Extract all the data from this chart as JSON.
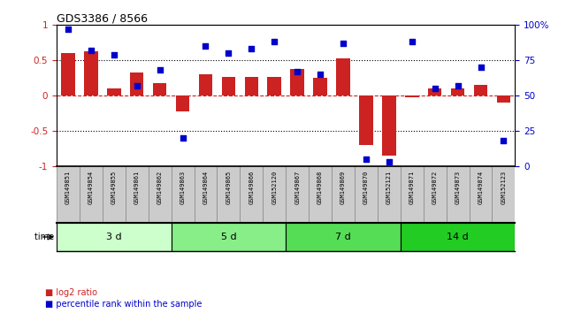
{
  "title": "GDS3386 / 8566",
  "samples": [
    "GSM149851",
    "GSM149854",
    "GSM149855",
    "GSM149861",
    "GSM149862",
    "GSM149863",
    "GSM149864",
    "GSM149865",
    "GSM149866",
    "GSM152120",
    "GSM149867",
    "GSM149868",
    "GSM149869",
    "GSM149870",
    "GSM152121",
    "GSM149871",
    "GSM149872",
    "GSM149873",
    "GSM149874",
    "GSM152123"
  ],
  "log2_ratio": [
    0.6,
    0.63,
    0.1,
    0.33,
    0.18,
    -0.22,
    0.3,
    0.27,
    0.27,
    0.27,
    0.38,
    0.25,
    0.53,
    -0.7,
    -0.85,
    -0.02,
    0.1,
    0.1,
    0.15,
    -0.1
  ],
  "percentile_rank": [
    97,
    82,
    79,
    57,
    68,
    20,
    85,
    80,
    83,
    88,
    67,
    65,
    87,
    5,
    3,
    88,
    55,
    57,
    70,
    18
  ],
  "groups": [
    {
      "label": "3 d",
      "start": 0,
      "end": 5,
      "color": "#ccffcc"
    },
    {
      "label": "5 d",
      "start": 5,
      "end": 10,
      "color": "#88ee88"
    },
    {
      "label": "7 d",
      "start": 10,
      "end": 15,
      "color": "#55dd55"
    },
    {
      "label": "14 d",
      "start": 15,
      "end": 20,
      "color": "#22cc22"
    }
  ],
  "bar_color": "#cc2222",
  "dot_color": "#0000cc",
  "ylim_left": [
    -1.0,
    1.0
  ],
  "ylim_right": [
    0,
    100
  ],
  "yticks_left": [
    -1.0,
    -0.5,
    0.0,
    0.5,
    1.0
  ],
  "ytick_labels_left": [
    "-1",
    "-0.5",
    "0",
    "0.5",
    "1"
  ],
  "yticks_right": [
    0,
    25,
    50,
    75,
    100
  ],
  "ytick_labels_right": [
    "0",
    "25",
    "50",
    "75",
    "100%"
  ],
  "hline_dotted": [
    0.5,
    -0.5
  ],
  "hline_dashed": [
    0.0
  ],
  "legend_items": [
    {
      "label": "log2 ratio",
      "color": "#cc2222"
    },
    {
      "label": "percentile rank within the sample",
      "color": "#0000cc"
    }
  ],
  "label_bg_color": "#cccccc",
  "label_border_color": "#888888"
}
